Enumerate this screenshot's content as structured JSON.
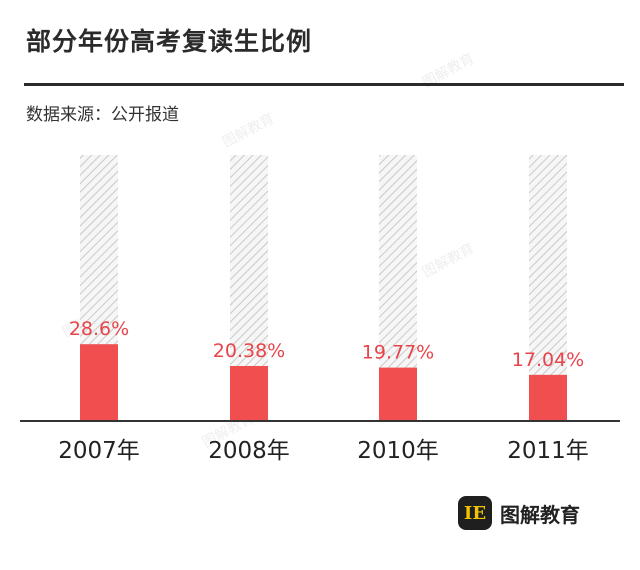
{
  "title": "部分年份高考复读生比例",
  "source": "数据来源：公开报道",
  "brand": {
    "name": "图解教育",
    "logo_icon": "brand-logo-icon"
  },
  "colors": {
    "bar": "#f04e4f",
    "label": "#e8454b",
    "hatch": "#c8c8c8",
    "axis": "#333333"
  },
  "chart_data": {
    "type": "bar",
    "categories": [
      "2007年",
      "2008年",
      "2010年",
      "2011年"
    ],
    "values": [
      28.6,
      20.38,
      19.77,
      17.04
    ],
    "data_labels": [
      "28.6%",
      "20.38%",
      "19.77%",
      "17.04%"
    ],
    "unit": "%",
    "ylim": [
      0,
      100
    ],
    "background_bars": true
  }
}
